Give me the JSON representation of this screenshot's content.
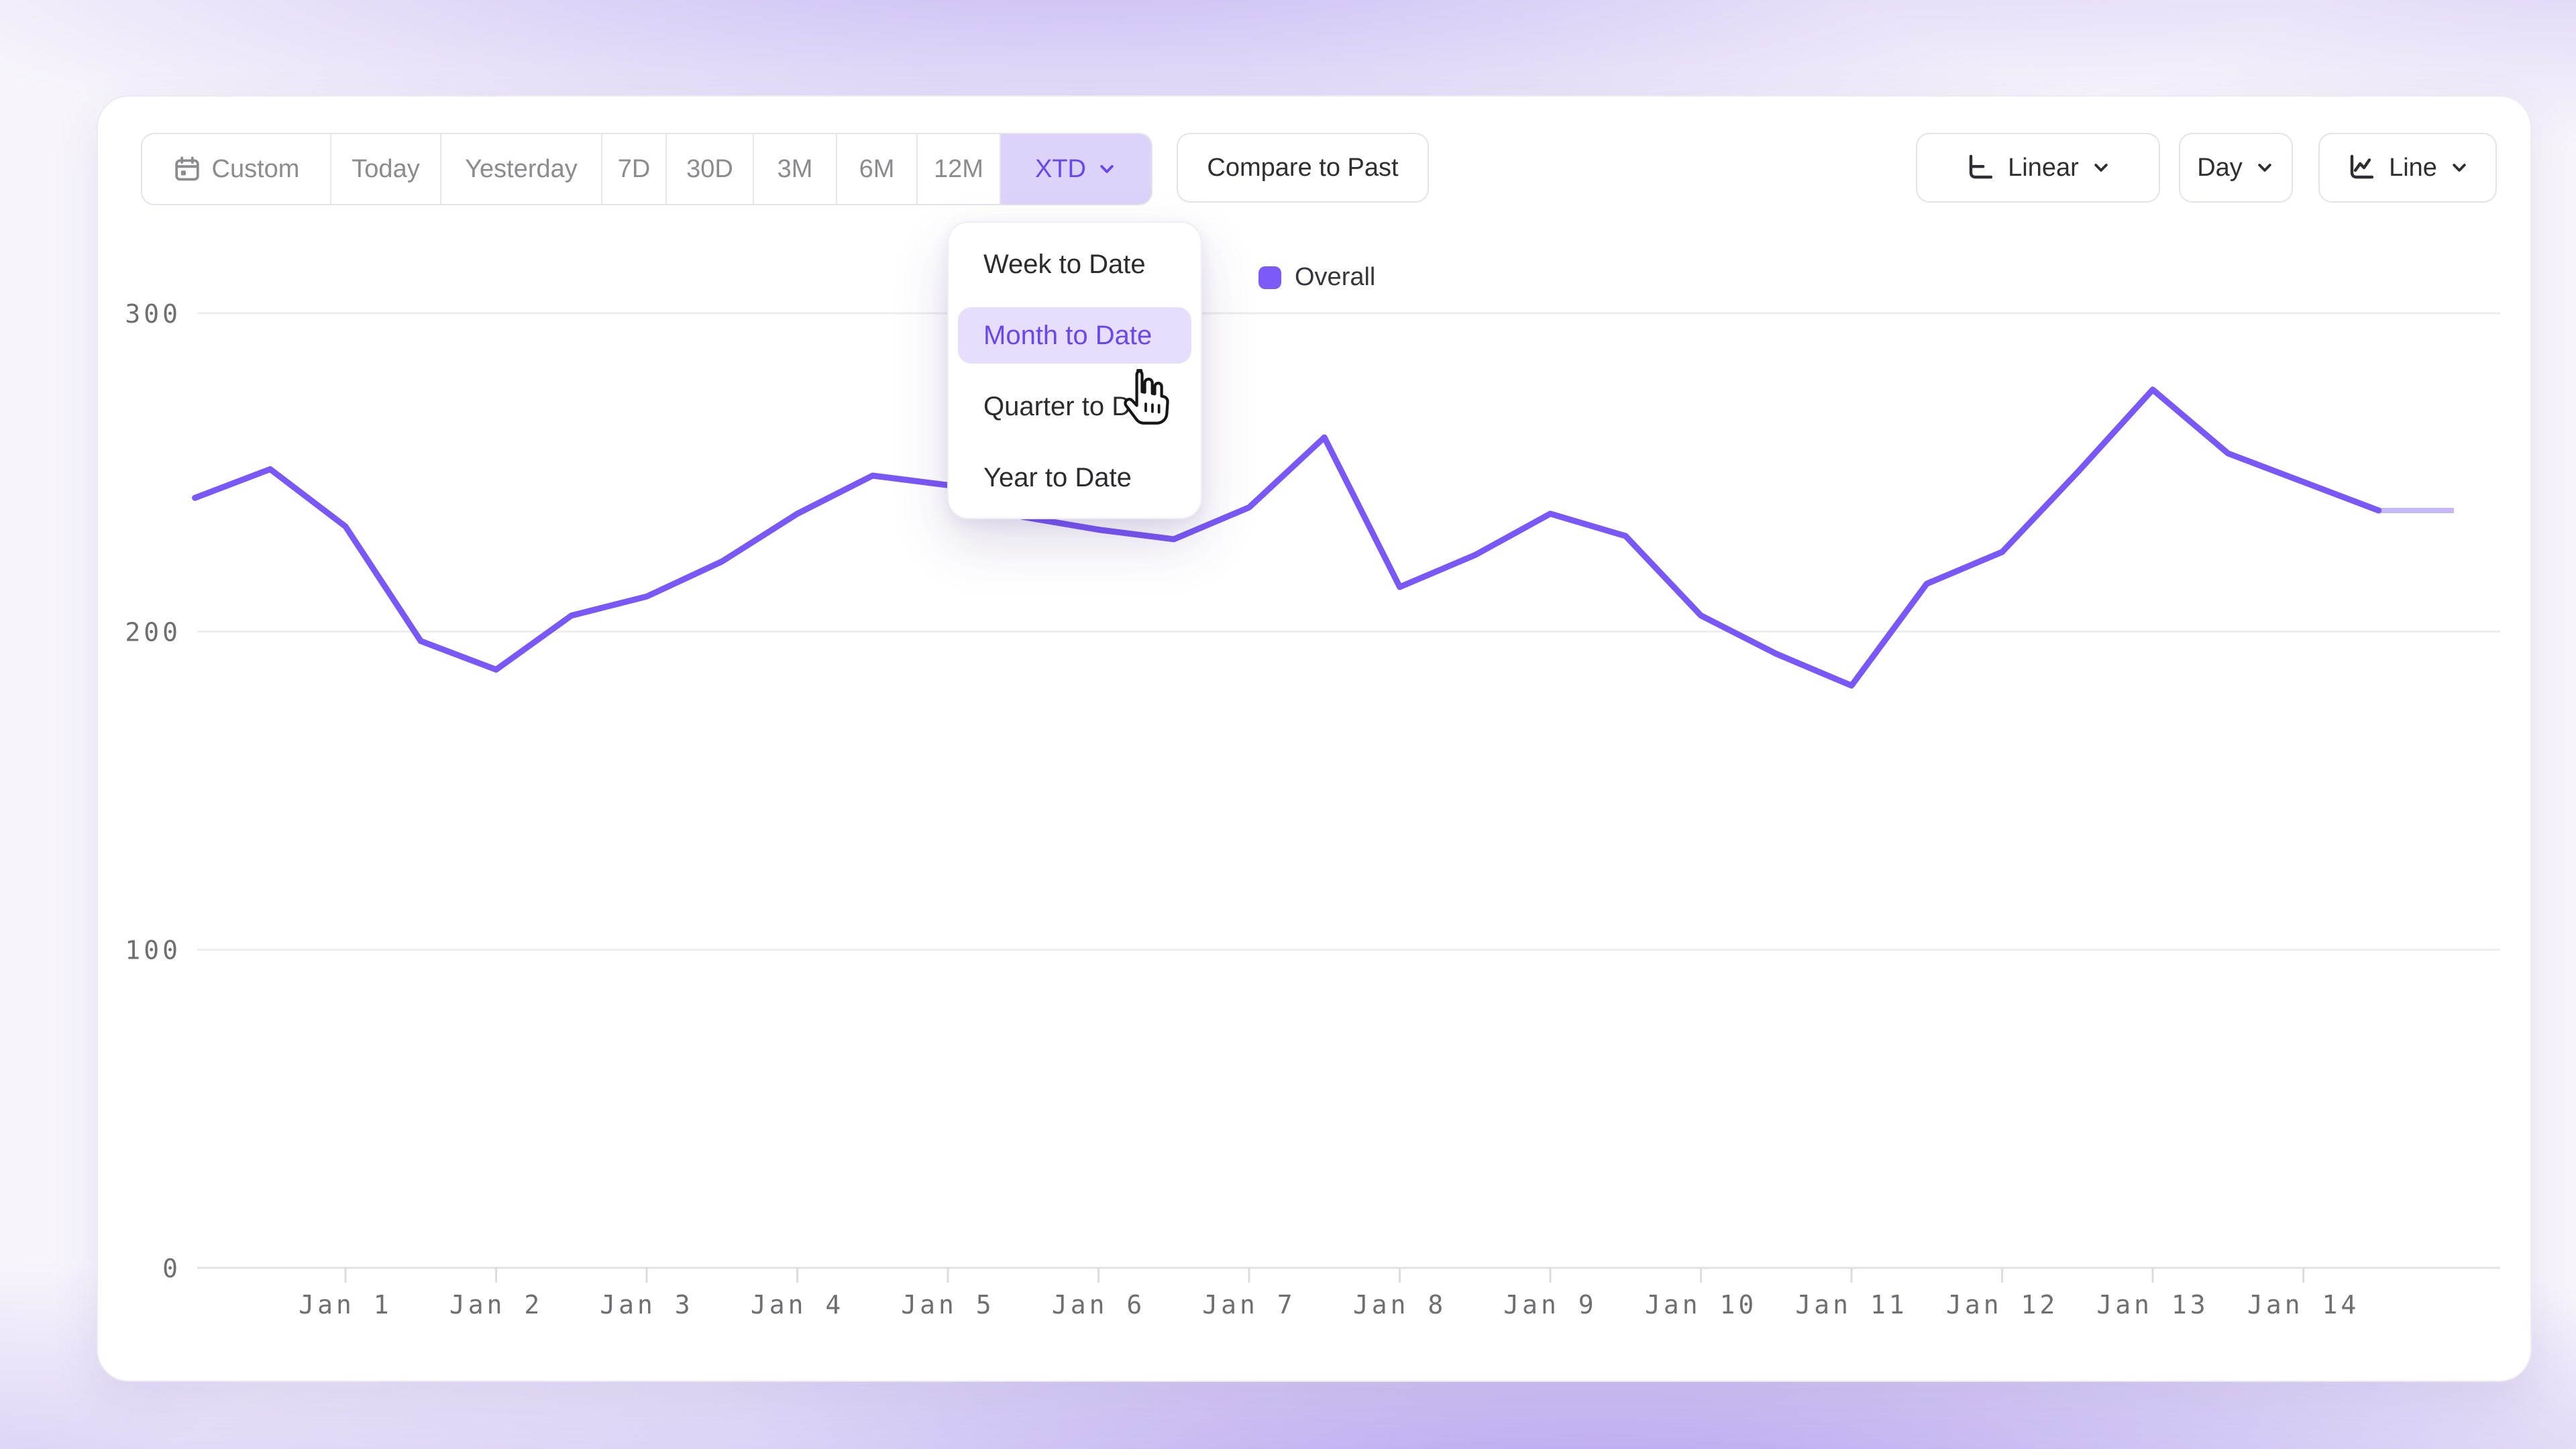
{
  "toolbar": {
    "range_buttons": [
      {
        "label": "Custom",
        "icon": "calendar-icon",
        "selected": false
      },
      {
        "label": "Today",
        "selected": false
      },
      {
        "label": "Yesterday",
        "selected": false
      },
      {
        "label": "7D",
        "selected": false
      },
      {
        "label": "30D",
        "selected": false
      },
      {
        "label": "3M",
        "selected": false
      },
      {
        "label": "6M",
        "selected": false
      },
      {
        "label": "12M",
        "selected": false
      },
      {
        "label": "XTD",
        "selected": true,
        "has_chevron": true
      }
    ],
    "selected_range": "XTD",
    "compare_label": "Compare to Past",
    "scale_button": {
      "label": "Linear",
      "icon": "linear-scale-icon",
      "has_chevron": true
    },
    "granularity_button": {
      "label": "Day",
      "has_chevron": true
    },
    "chart_type_button": {
      "label": "Line",
      "icon": "line-chart-icon",
      "has_chevron": true
    }
  },
  "dropdown": {
    "items": [
      "Week to Date",
      "Month to Date",
      "Quarter to Date",
      "Year to Date"
    ],
    "highlighted_item": "Month to Date",
    "highlighted_index": 1
  },
  "legend": {
    "label": "Overall",
    "color": "#7b5af8"
  },
  "colors": {
    "accent_text": "#6847f0",
    "line": "#7a58f7",
    "selected_pill_bg": "#dcd2fa",
    "menu_highlight_bg": "#e7ddfc",
    "gridline": "#ededed",
    "axis_line": "#e2e2e2",
    "axis_text": "#6f6f73"
  },
  "chart_data": {
    "type": "line",
    "title": "",
    "xlabel": "",
    "ylabel": "",
    "x_ticks": [
      "Jan 1",
      "Jan 2",
      "Jan 3",
      "Jan 4",
      "Jan 5",
      "Jan 6",
      "Jan 7",
      "Jan 8",
      "Jan 9",
      "Jan 10",
      "Jan 11",
      "Jan 12",
      "Jan 13",
      "Jan 14"
    ],
    "y_axis": {
      "ticks": [
        0,
        100,
        200,
        300
      ],
      "ylim": [
        0,
        300
      ]
    },
    "grid": true,
    "legend_position": "top-center",
    "series": [
      {
        "name": "Overall",
        "color": "#7a58f7",
        "x_unit": "days_after_Jan1_half_day_steps",
        "points": [
          {
            "d": -1.0,
            "v": 242
          },
          {
            "d": -0.5,
            "v": 251
          },
          {
            "d": 0.0,
            "v": 233
          },
          {
            "d": 0.5,
            "v": 197
          },
          {
            "d": 1.0,
            "v": 188
          },
          {
            "d": 1.5,
            "v": 205
          },
          {
            "d": 2.0,
            "v": 211
          },
          {
            "d": 2.5,
            "v": 222
          },
          {
            "d": 3.0,
            "v": 237
          },
          {
            "d": 3.5,
            "v": 249
          },
          {
            "d": 4.0,
            "v": 246
          },
          {
            "d": 4.5,
            "v": 236
          },
          {
            "d": 5.0,
            "v": 232
          },
          {
            "d": 5.5,
            "v": 229
          },
          {
            "d": 6.0,
            "v": 239
          },
          {
            "d": 6.5,
            "v": 261
          },
          {
            "d": 7.0,
            "v": 214
          },
          {
            "d": 7.5,
            "v": 224
          },
          {
            "d": 8.0,
            "v": 237
          },
          {
            "d": 8.5,
            "v": 230
          },
          {
            "d": 9.0,
            "v": 205
          },
          {
            "d": 9.5,
            "v": 193
          },
          {
            "d": 10.0,
            "v": 183
          },
          {
            "d": 10.5,
            "v": 215
          },
          {
            "d": 11.0,
            "v": 225
          },
          {
            "d": 11.5,
            "v": 250
          },
          {
            "d": 12.0,
            "v": 276
          },
          {
            "d": 12.5,
            "v": 256
          },
          {
            "d": 13.0,
            "v": 247
          },
          {
            "d": 13.5,
            "v": 238
          }
        ],
        "partial_tail": {
          "from_d": 13.5,
          "to_d": 14.0,
          "v": 238,
          "style": "faded-flat"
        }
      }
    ]
  }
}
